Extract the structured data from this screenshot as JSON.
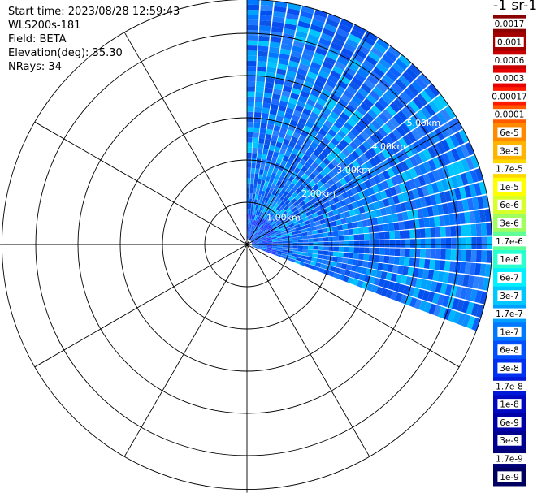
{
  "header": {
    "start_time": "Start time: 2023/08/28 12:59:43",
    "instrument": "WLS200s-181",
    "field": "Field: BETA",
    "elevation": "Elevation(deg): 35.30",
    "nrays": "NRays: 34"
  },
  "colorbar": {
    "unit": "-1 sr-1",
    "ticks": [
      "0.0017",
      "0.001",
      "0.0006",
      "0.0003",
      "0.00017",
      "0.0001",
      "6e-5",
      "3e-5",
      "1.7e-5",
      "1e-5",
      "6e-6",
      "3e-6",
      "1.7e-6",
      "1e-6",
      "6e-7",
      "3e-7",
      "1.7e-7",
      "1e-7",
      "6e-8",
      "3e-8",
      "1.7e-8",
      "1e-8",
      "6e-9",
      "3e-9",
      "1.7e-9",
      "1e-9"
    ],
    "colors": [
      "#8b0000",
      "#a30000",
      "#c80000",
      "#e60000",
      "#ff1a00",
      "#ff5a00",
      "#ff8a00",
      "#ffb400",
      "#ffd800",
      "#ffff00",
      "#d8ff28",
      "#a0ff60",
      "#60ff98",
      "#28ffd0",
      "#00f0ff",
      "#00c8ff",
      "#00a0ff",
      "#0078ff",
      "#0050ff",
      "#0030f0",
      "#0018d8",
      "#0008c0",
      "#0000a8",
      "#000090",
      "#000078",
      "#000060"
    ]
  },
  "chart_data": {
    "type": "polar-ppi",
    "range_labels": [
      "1.00km",
      "2.00km",
      "3.00km",
      "4.00km",
      "5.00km"
    ],
    "range_rings_km": [
      1,
      2,
      3,
      4,
      5
    ],
    "max_range_km": 5.8,
    "sector_azimuth_deg": [
      0,
      111
    ],
    "n_rays": 34,
    "spoke_step_deg": 30,
    "grid": true
  }
}
